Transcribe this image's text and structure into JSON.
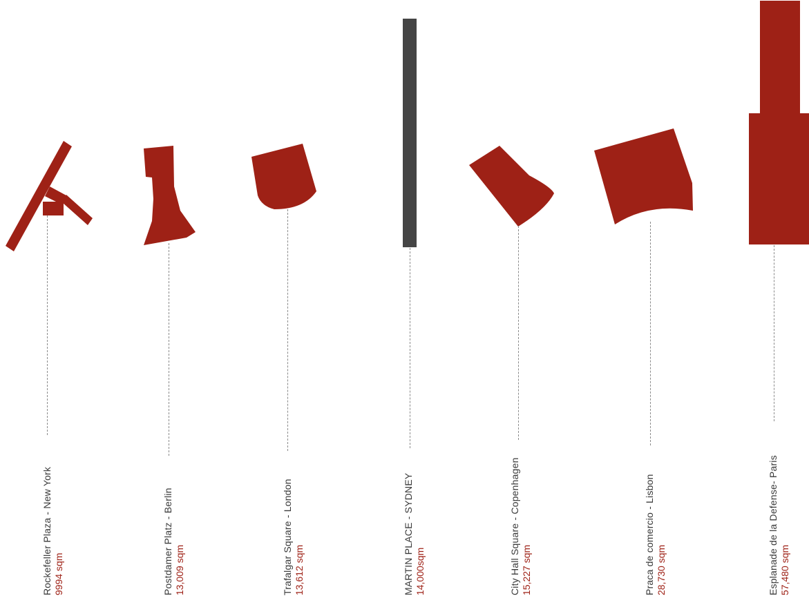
{
  "colors": {
    "shape": "#9e2116",
    "highlight": "#454545",
    "area_text": "#9e2116"
  },
  "plazas": [
    {
      "id": "rockefeller",
      "name": "Rockefeller Plaza - New York",
      "area": "9994 sqm",
      "highlight": false
    },
    {
      "id": "postdamer",
      "name": "Postdamer Platz - Berlin",
      "area": "13,009 sqm",
      "highlight": false
    },
    {
      "id": "trafalgar",
      "name": "Trafalgar Square - London",
      "area": "13,612 sqm",
      "highlight": false
    },
    {
      "id": "martin",
      "name": "MARTIN PLACE - SYDNEY",
      "area": "14,000sqm",
      "highlight": true
    },
    {
      "id": "cityhall",
      "name": "City Hall Square - Copenhagen",
      "area": "15,227 sqm",
      "highlight": false
    },
    {
      "id": "praca",
      "name": "Praca de comercio - Lisbon",
      "area": "28,730 sqm",
      "highlight": false
    },
    {
      "id": "esplanade",
      "name": "Esplanade de la Defense- Paris",
      "area": "57,480 sqm",
      "highlight": false
    }
  ]
}
